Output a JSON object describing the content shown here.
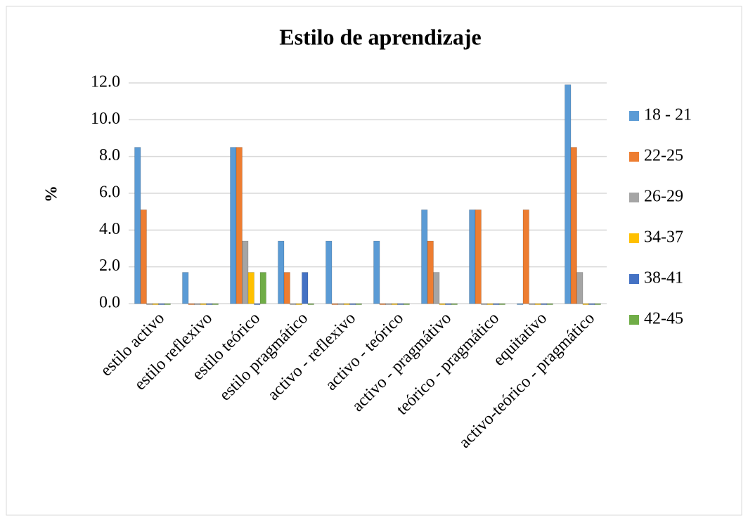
{
  "chart_data": {
    "type": "bar",
    "title": "Estilo de aprendizaje",
    "y_label": "%",
    "categories": [
      "estilo activo",
      "estilo reflexivo",
      "estilo teórico",
      "estilo pragmático",
      "activo - reflexivo",
      "activo - teórico",
      "activo - pragmátivo",
      "teórico - pragmático",
      "equitativo",
      "activo-teórico - pragmático"
    ],
    "series": [
      {
        "name": "18 - 21",
        "color": "#5b9bd5",
        "values": [
          8.5,
          1.7,
          8.5,
          3.4,
          3.4,
          3.4,
          5.1,
          5.1,
          0,
          11.9
        ]
      },
      {
        "name": "22-25",
        "color": "#ed7d31",
        "values": [
          5.1,
          0,
          8.5,
          1.7,
          0,
          0,
          3.4,
          5.1,
          5.1,
          8.5
        ]
      },
      {
        "name": "26-29",
        "color": "#a5a5a5",
        "values": [
          0,
          0,
          3.4,
          0,
          0,
          0,
          1.7,
          0,
          0,
          1.7
        ]
      },
      {
        "name": "34-37",
        "color": "#ffc000",
        "values": [
          0,
          0,
          1.7,
          0,
          0,
          0,
          0,
          0,
          0,
          0
        ]
      },
      {
        "name": "38-41",
        "color": "#4472c4",
        "values": [
          0,
          0,
          0,
          1.7,
          0,
          0,
          0,
          0,
          0,
          0
        ]
      },
      {
        "name": "42-45",
        "color": "#70ad47",
        "values": [
          0,
          0,
          1.7,
          0,
          0,
          0,
          0,
          0,
          0,
          0
        ]
      }
    ],
    "ylim": [
      0,
      12
    ],
    "yticks": [
      {
        "value": 0,
        "label": "0.0"
      },
      {
        "value": 2,
        "label": "2.0"
      },
      {
        "value": 4,
        "label": "4.0"
      },
      {
        "value": 6,
        "label": "6.0"
      },
      {
        "value": 8,
        "label": "8.0"
      },
      {
        "value": 10,
        "label": "10.0"
      },
      {
        "value": 12,
        "label": "12.0"
      }
    ],
    "grid": true,
    "legend": "right"
  }
}
